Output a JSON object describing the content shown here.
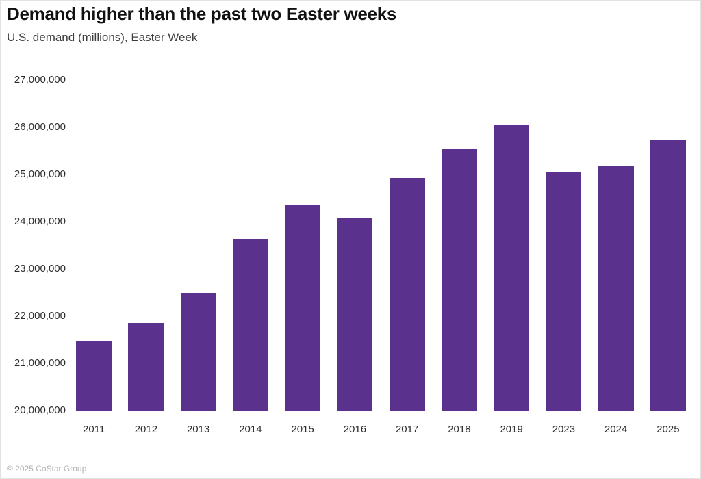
{
  "chart_data": {
    "type": "bar",
    "title": "Demand higher than the past two Easter weeks",
    "subtitle": "U.S. demand (millions), Easter Week",
    "categories": [
      "2011",
      "2012",
      "2013",
      "2014",
      "2015",
      "2016",
      "2017",
      "2018",
      "2019",
      "2023",
      "2024",
      "2025"
    ],
    "values": [
      21480000,
      21860000,
      22490000,
      23630000,
      24360000,
      24090000,
      24930000,
      25530000,
      26040000,
      25060000,
      25190000,
      25720000
    ],
    "ylim": [
      20000000,
      27000000
    ],
    "ytick_step": 1000000,
    "ytick_labels": [
      "27,000,000",
      "26,000,000",
      "25,000,000",
      "24,000,000",
      "23,000,000",
      "22,000,000",
      "21,000,000",
      "20,000,000"
    ],
    "xlabel": "",
    "ylabel": "",
    "grid": false,
    "legend": "none",
    "bar_color": "#5A318C",
    "title_color": "#111111",
    "footer": "© 2025 CoStar Group",
    "footer_color": "#b3b3b3"
  }
}
